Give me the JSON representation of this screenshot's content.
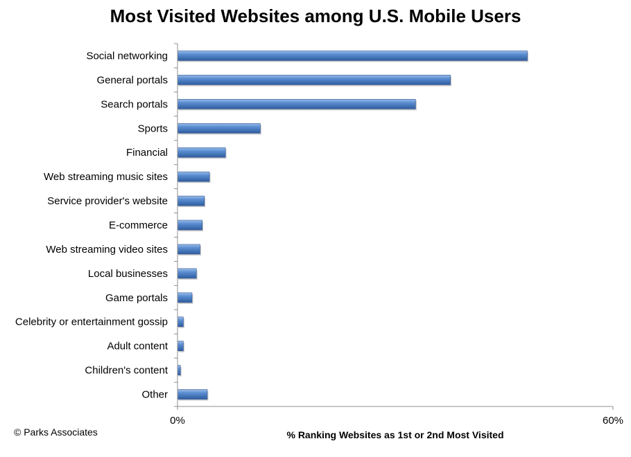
{
  "chart_data": {
    "type": "bar",
    "orientation": "horizontal",
    "title": "Most Visited Websites among U.S. Mobile Users",
    "xlabel": "% Ranking Websites as 1st or 2nd Most Visited",
    "ylabel": "",
    "xlim": [
      0,
      60
    ],
    "x_tick_labels": [
      "0%",
      "60%"
    ],
    "grid": false,
    "bar_color": "#4F81BD",
    "categories": [
      "Social networking",
      "General portals",
      "Search portals",
      "Sports",
      "Financial",
      "Web streaming music sites",
      "Service provider's website",
      "E-commerce",
      "Web streaming video sites",
      "Local businesses",
      "Game portals",
      "Celebrity or entertainment gossip",
      "Adult content",
      "Children's content",
      "Other"
    ],
    "values": [
      48.2,
      37.6,
      32.8,
      11.4,
      6.6,
      4.4,
      3.7,
      3.4,
      3.1,
      2.6,
      2.0,
      0.8,
      0.8,
      0.4,
      4.1
    ]
  },
  "footer": {
    "copyright": "© Parks Associates"
  }
}
